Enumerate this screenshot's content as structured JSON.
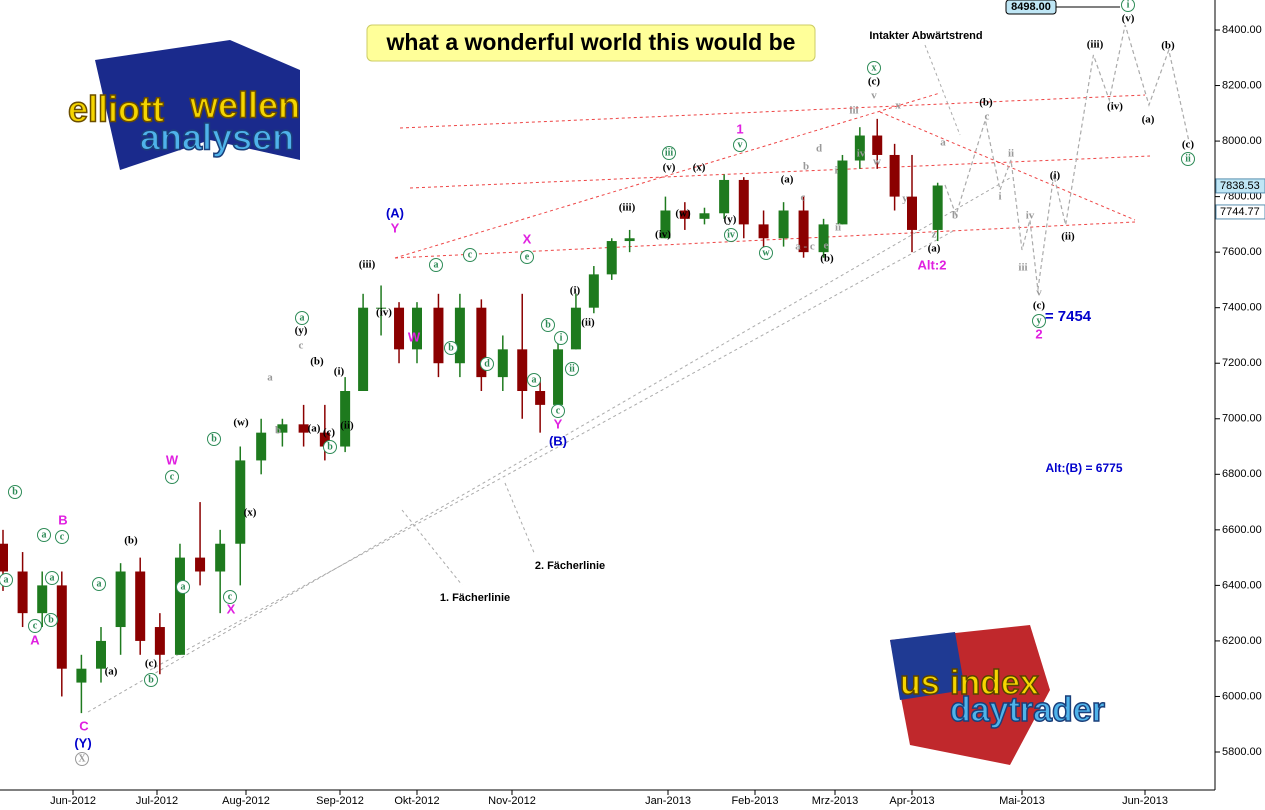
{
  "chart_data": {
    "type": "candlestick",
    "title": "what a wonderful world this would be",
    "logo_top": [
      "elliott",
      "wellen",
      "analysen"
    ],
    "logo_bottom": [
      "us",
      "index",
      "daytrader"
    ],
    "up_color": "#1e7a1e",
    "down_color": "#8b0000",
    "x": [
      "2012-05-07",
      "2012-05-14",
      "2012-05-21",
      "2012-05-28",
      "2012-06-04",
      "2012-06-11",
      "2012-06-18",
      "2012-06-25",
      "2012-07-02",
      "2012-07-09",
      "2012-07-16",
      "2012-07-23",
      "2012-07-30",
      "2012-08-06",
      "2012-08-13",
      "2012-08-20",
      "2012-08-27",
      "2012-09-03",
      "2012-09-10",
      "2012-09-17",
      "2012-09-24",
      "2012-10-01",
      "2012-10-08",
      "2012-10-15",
      "2012-10-22",
      "2012-10-29",
      "2012-11-05",
      "2012-11-12",
      "2012-11-19",
      "2012-11-26",
      "2012-12-03",
      "2012-12-10",
      "2012-12-17",
      "2012-12-31",
      "2013-01-07",
      "2013-01-14",
      "2013-01-21",
      "2013-01-28",
      "2013-02-04",
      "2013-02-11",
      "2013-02-18",
      "2013-02-25",
      "2013-03-04",
      "2013-03-11",
      "2013-03-18",
      "2013-03-25",
      "2013-04-01",
      "2013-04-08"
    ],
    "open": [
      6550,
      6450,
      6300,
      6400,
      6050,
      6100,
      6250,
      6450,
      6250,
      6150,
      6500,
      6450,
      6550,
      6850,
      6950,
      6980,
      6950,
      6900,
      7100,
      7400,
      7400,
      7250,
      7400,
      7200,
      7400,
      7150,
      7250,
      7100,
      7050,
      7250,
      7400,
      7520,
      7640,
      7650,
      7750,
      7720,
      7740,
      7860,
      7700,
      7650,
      7750,
      7600,
      7700,
      7930,
      8020,
      7950,
      7800,
      7680
    ],
    "high": [
      6600,
      6520,
      6450,
      6450,
      6150,
      6250,
      6480,
      6500,
      6300,
      6550,
      6700,
      6600,
      6900,
      7000,
      7000,
      7050,
      7050,
      7150,
      7450,
      7480,
      7420,
      7420,
      7450,
      7450,
      7430,
      7300,
      7450,
      7150,
      7300,
      7450,
      7550,
      7650,
      7680,
      7800,
      7780,
      7760,
      7880,
      7870,
      7750,
      7780,
      7800,
      7720,
      7950,
      8050,
      8080,
      7990,
      7950,
      7850
    ],
    "low": [
      6380,
      6250,
      6250,
      6000,
      5940,
      6050,
      6150,
      6150,
      6080,
      6150,
      6400,
      6300,
      6400,
      6800,
      6900,
      6900,
      6850,
      6880,
      7100,
      7300,
      7200,
      7200,
      7150,
      7150,
      7100,
      7100,
      7000,
      6950,
      7050,
      7250,
      7380,
      7500,
      7600,
      7650,
      7680,
      7700,
      7720,
      7650,
      7580,
      7620,
      7580,
      7580,
      7700,
      7900,
      7900,
      7750,
      7600,
      7640
    ],
    "close": [
      6450,
      6300,
      6400,
      6100,
      6100,
      6200,
      6450,
      6200,
      6150,
      6500,
      6450,
      6550,
      6850,
      6950,
      6980,
      6950,
      6900,
      7100,
      7400,
      7400,
      7250,
      7400,
      7200,
      7400,
      7150,
      7250,
      7100,
      7050,
      7250,
      7400,
      7520,
      7640,
      7650,
      7750,
      7720,
      7740,
      7860,
      7700,
      7650,
      7750,
      7600,
      7700,
      7930,
      8020,
      7950,
      7800,
      7680,
      7840
    ],
    "projection": {
      "color": "#aaaaaa",
      "x": [
        "2013-04-10",
        "2013-04-13",
        "2013-04-21",
        "2013-04-25",
        "2013-04-28",
        "2013-05-01",
        "2013-05-03",
        "2013-05-05",
        "2013-05-09",
        "2013-05-12",
        "2013-05-19",
        "2013-05-23",
        "2013-05-27",
        "2013-06-02",
        "2013-06-07",
        "2013-06-12"
      ],
      "y": [
        7842,
        7734,
        8076,
        7824,
        7932,
        7608,
        7716,
        7464,
        7878,
        7698,
        8310,
        8148,
        8418,
        8130,
        8328,
        8004
      ]
    },
    "ylim": [
      5700,
      8500
    ],
    "yticks": [
      {
        "value": 5800,
        "label": "5800.00"
      },
      {
        "value": 6000,
        "label": "6000.00"
      },
      {
        "value": 6200,
        "label": "6200.00"
      },
      {
        "value": 6400,
        "label": "6400.00"
      },
      {
        "value": 6600,
        "label": "6600.00"
      },
      {
        "value": 6800,
        "label": "6800.00"
      },
      {
        "value": 7000,
        "label": "7000.00"
      },
      {
        "value": 7200,
        "label": "7200.00"
      },
      {
        "value": 7400,
        "label": "7400.00"
      },
      {
        "value": 7600,
        "label": "7600.00"
      },
      {
        "value": 7800,
        "label": "7800.00"
      },
      {
        "value": 8000,
        "label": "8000.00"
      },
      {
        "value": 8200,
        "label": "8200.00"
      },
      {
        "value": 8400,
        "label": "8400.00"
      }
    ],
    "xticks": [
      {
        "value": "2012-06-01",
        "label": "Jun-2012"
      },
      {
        "value": "2012-07-01",
        "label": "Jul-2012"
      },
      {
        "value": "2012-08-01",
        "label": "Aug-2012"
      },
      {
        "value": "2012-09-01",
        "label": "Sep-2012"
      },
      {
        "value": "2012-10-01",
        "label": "Okt-2012"
      },
      {
        "value": "2012-11-01",
        "label": "Nov-2012"
      },
      {
        "value": "2013-01-01",
        "label": "Jan-2013"
      },
      {
        "value": "2013-02-01",
        "label": "Feb-2013"
      },
      {
        "value": "2013-03-01",
        "label": "Mrz-2013"
      },
      {
        "value": "2013-04-01",
        "label": "Apr-2013"
      },
      {
        "value": "2013-05-01",
        "label": "Mai-2013"
      },
      {
        "value": "2013-06-01",
        "label": "Jun-2013"
      }
    ],
    "price_tags": [
      {
        "value": 8498,
        "label": "8498.00"
      },
      {
        "value": 7838.53,
        "label": "7838.53"
      },
      {
        "value": 7744.77,
        "label": "7744.77"
      }
    ],
    "texts": [
      {
        "text": "Intakter Abwärtstrend",
        "color": "#000000"
      },
      {
        "text": "1. Fächerlinie",
        "color": "#000000"
      },
      {
        "text": "2. Fächerlinie",
        "color": "#000000"
      },
      {
        "text": "= 7454",
        "color": "#0000cc"
      },
      {
        "text": "Alt:(B) = 6775",
        "color": "#0000cc"
      }
    ],
    "wave_labels": [
      {
        "color": "#e020e0",
        "circled": false,
        "labels": [
          "A",
          "B",
          "C",
          "W",
          "X",
          "Y",
          "W",
          "X",
          "Y",
          "1",
          "Alt:2",
          "2"
        ]
      },
      {
        "color": "#0000cc",
        "circled": false,
        "labels": [
          "(Y)",
          "(A)",
          "(B)"
        ]
      },
      {
        "color": "#000000",
        "circled": false,
        "labels": [
          "(b)",
          "(a)",
          "(c)",
          "(w)",
          "(x)",
          "(y)",
          "(b)",
          "(i)",
          "(a)",
          "(c)",
          "(ii)",
          "(iii)",
          "(iv)",
          "(i)",
          "(ii)",
          "(iii)",
          "(iv)",
          "(v)",
          "(w)",
          "(x)",
          "(y)",
          "(a)",
          "(b)",
          "(c)",
          "(a)",
          "(b)",
          "(c)",
          "(i)",
          "(ii)",
          "(iii)",
          "(iv)",
          "(v)",
          "(a)",
          "(b)",
          "(c)"
        ]
      },
      {
        "color": "#2e8b57",
        "circled": true,
        "labels": [
          "b",
          "a",
          "a",
          "c",
          "a",
          "b",
          "c",
          "a",
          "b",
          "c",
          "b",
          "a",
          "c",
          "a",
          "b",
          "a",
          "c",
          "b",
          "d",
          "e",
          "b",
          "a",
          "c",
          "i",
          "ii",
          "iii",
          "v",
          "iv",
          "w",
          "x",
          "y",
          "i",
          "ii"
        ]
      },
      {
        "color": "#999999",
        "circled": false,
        "labels": [
          "c",
          "a",
          "b",
          "d",
          "b",
          "c",
          "i",
          "ii",
          "a - c",
          "e",
          "iii",
          "iv",
          "v",
          "w",
          "x",
          "y",
          "z",
          "a",
          "b",
          "c",
          "i",
          "ii",
          "iii",
          "iv",
          "v"
        ]
      },
      {
        "color": "#999999",
        "circled": true,
        "labels": [
          "X"
        ]
      }
    ]
  }
}
